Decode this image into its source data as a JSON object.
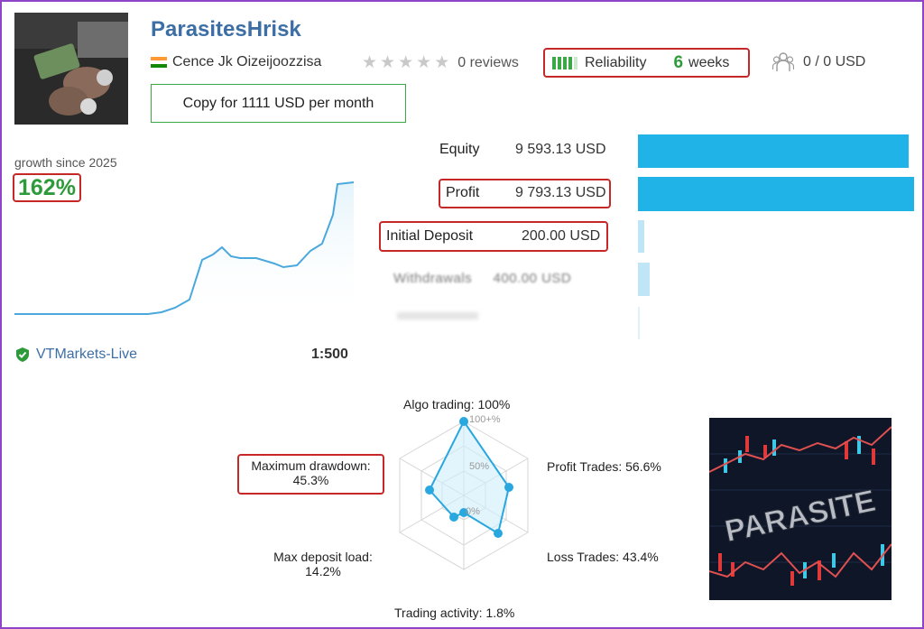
{
  "header": {
    "title": "ParasitesHrisk",
    "author": "Cence Jk Oizeijoozzisa",
    "reviews": "0 reviews",
    "reliability_label": "Reliability",
    "reliability_value": "6",
    "reliability_unit": "weeks",
    "subscribers": "0 / 0 USD",
    "copy_button": "Copy for 1111 USD per month"
  },
  "growth": {
    "label": "growth since 2025",
    "value": "162%"
  },
  "account": {
    "broker": "VTMarkets-Live",
    "leverage": "1:500"
  },
  "stats": [
    {
      "label": "Equity",
      "value": "9 593.13 USD",
      "fraction": 0.98
    },
    {
      "label": "Profit",
      "value": "9 793.13 USD",
      "fraction": 1.0
    },
    {
      "label": "Initial Deposit",
      "value": "200.00 USD",
      "fraction": 0.02
    },
    {
      "label": "Withdrawals",
      "value": "400.00 USD",
      "fraction": 0.04
    }
  ],
  "radar": {
    "algo_trading": "Algo trading: 100%",
    "profit_trades": "Profit Trades: 56.6%",
    "loss_trades": "Loss Trades: 43.4%",
    "trading_activity": "Trading activity: 1.8%",
    "max_deposit_load_label": "Max deposit load:",
    "max_deposit_load_value": "14.2%",
    "max_drawdown_label": "Maximum drawdown:",
    "max_drawdown_value": "45.3%",
    "ring_100": "100+%",
    "ring_50": "50%",
    "ring_0": "0%",
    "values": [
      100,
      56.6,
      43.4,
      1.8,
      14.2,
      45.3
    ]
  },
  "promo_image": {
    "text": "PARASITE"
  },
  "colors": {
    "accent_blue": "#1fb3e8",
    "highlight_red": "#c62828",
    "positive_green": "#2e9b3a",
    "title_blue": "#3d6fa5",
    "frame_purple": "#8e44c9"
  }
}
